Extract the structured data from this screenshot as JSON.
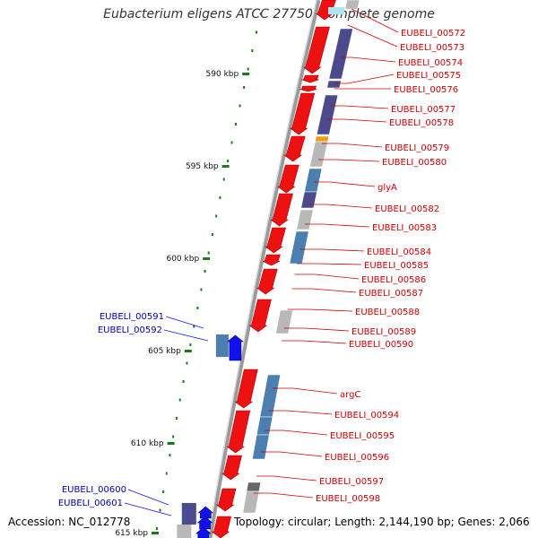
{
  "title": "Eubacterium eligens ATCC 27750, complete genome",
  "accession_text": "Accession: NC_012778",
  "topology_text": "Topology: circular; Length: 2,144,190 bp; Genes: 2,066",
  "colors": {
    "forward_gene": "#ee1111",
    "reverse_gene": "#1111ee",
    "label_red": "#cc0000",
    "label_blue": "#0000aa",
    "backbone": "#888888",
    "tick_green": "#1a7a1a",
    "cds_slate": "#4b4a8c",
    "cds_teal": "#4a7fb0",
    "cds_gray": "#b8b8b8",
    "cds_orange": "#f39c12"
  },
  "scale_labels": [
    "590 kbp",
    "595 kbp",
    "600 kbp",
    "605 kbp",
    "610 kbp",
    "615 kbp"
  ],
  "forward_labels": [
    "EUBELI_00572",
    "EUBELI_00573",
    "EUBELI_00574",
    "EUBELI_00575",
    "EUBELI_00576",
    "EUBELI_00577",
    "EUBELI_00578",
    "EUBELI_00579",
    "EUBELI_00580",
    "glyA",
    "EUBELI_00582",
    "EUBELI_00583",
    "EUBELI_00584",
    "EUBELI_00585",
    "EUBELI_00586",
    "EUBELI_00587",
    "EUBELI_00588",
    "EUBELI_00589",
    "EUBELI_00590",
    "argC",
    "EUBELI_00594",
    "EUBELI_00595",
    "EUBELI_00596",
    "EUBELI_00597",
    "EUBELI_00598"
  ],
  "reverse_labels": [
    "EUBELI_00591",
    "EUBELI_00592",
    "EUBELI_00600",
    "EUBELI_00601"
  ]
}
